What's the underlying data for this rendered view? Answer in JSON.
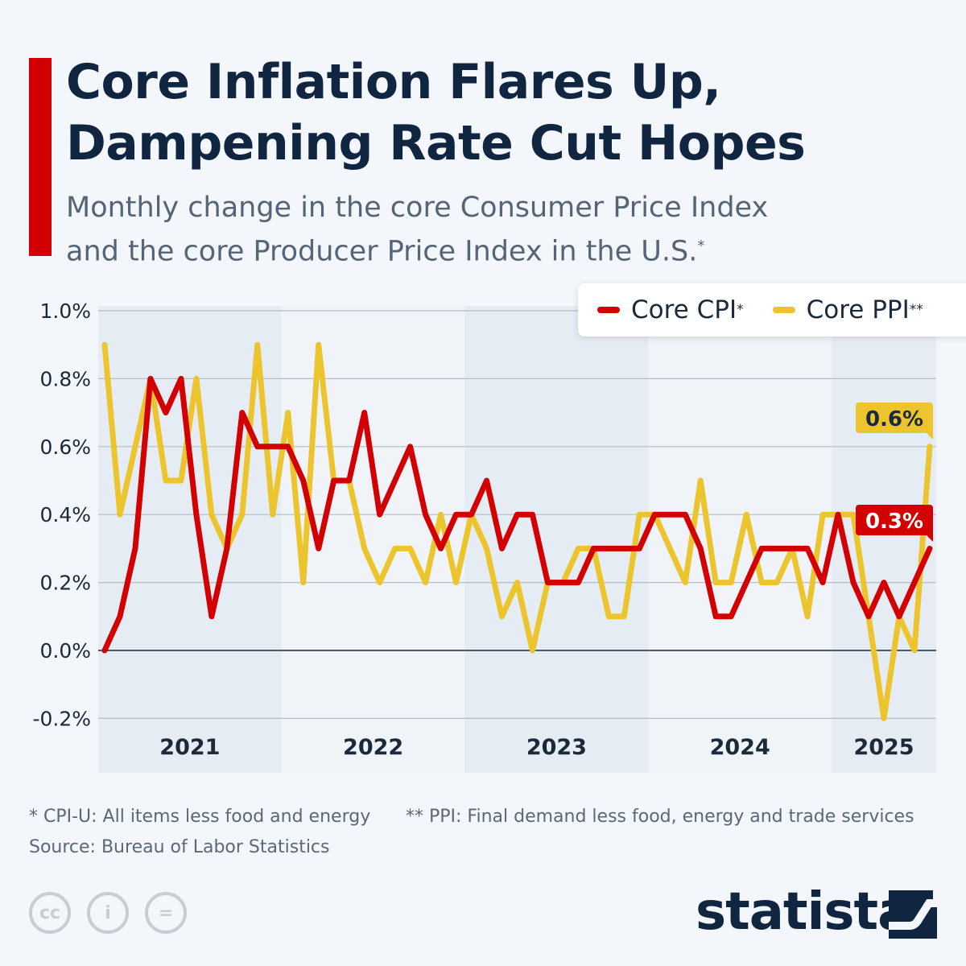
{
  "header": {
    "title_line1": "Core Inflation Flares Up,",
    "title_line2": "Dampening Rate Cut Hopes",
    "subtitle_line1": "Monthly change in the core Consumer Price Index",
    "subtitle_line2": "and the core Producer Price Index in the U.S.",
    "subtitle_mark": "*"
  },
  "legend": [
    {
      "label": "Core CPI",
      "mark": "*"
    },
    {
      "label": "Core PPI",
      "mark": "**"
    }
  ],
  "footer": {
    "note1": "* CPI-U: All items less food and energy",
    "note2": "** PPI: Final demand less food, energy and trade services",
    "source": "Source: Bureau of Labor Statistics",
    "brand": "statista",
    "license_icons": [
      "cc-icon",
      "attribution-icon",
      "no-derivatives-icon"
    ]
  },
  "colors": {
    "cpi": "#d20000",
    "ppi": "#ecc52e",
    "title": "#0f2540",
    "accent_bar": "#d20000"
  },
  "chart_data": {
    "type": "line",
    "x_start": "2021-01",
    "x_end": "2025-07",
    "x_frequency": "monthly",
    "year_labels": [
      "2021",
      "2022",
      "2023",
      "2024",
      "2025"
    ],
    "yticks": [
      "1.0%",
      "0.8%",
      "0.6%",
      "0.4%",
      "0.2%",
      "0.0%",
      "-0.2%"
    ],
    "ylim": [
      -0.2,
      1.0
    ],
    "grid": true,
    "legend_position": "top-right",
    "series": [
      {
        "name": "Core CPI",
        "values": [
          0.0,
          0.1,
          0.3,
          0.8,
          0.7,
          0.8,
          0.4,
          0.1,
          0.3,
          0.7,
          0.6,
          0.6,
          0.6,
          0.5,
          0.3,
          0.5,
          0.5,
          0.7,
          0.4,
          0.5,
          0.6,
          0.4,
          0.3,
          0.4,
          0.4,
          0.5,
          0.3,
          0.4,
          0.4,
          0.2,
          0.2,
          0.2,
          0.3,
          0.3,
          0.3,
          0.3,
          0.4,
          0.4,
          0.4,
          0.3,
          0.1,
          0.1,
          0.2,
          0.3,
          0.3,
          0.3,
          0.3,
          0.2,
          0.4,
          0.2,
          0.1,
          0.2,
          0.1,
          0.2,
          0.3
        ],
        "last_label": "0.3%"
      },
      {
        "name": "Core PPI",
        "values": [
          0.9,
          0.4,
          0.6,
          0.8,
          0.5,
          0.5,
          0.8,
          0.4,
          0.3,
          0.4,
          0.9,
          0.4,
          0.7,
          0.2,
          0.9,
          0.5,
          0.5,
          0.3,
          0.2,
          0.3,
          0.3,
          0.2,
          0.4,
          0.2,
          0.4,
          0.3,
          0.1,
          0.2,
          0.0,
          0.2,
          0.2,
          0.3,
          0.3,
          0.1,
          0.1,
          0.4,
          0.4,
          0.3,
          0.2,
          0.5,
          0.2,
          0.2,
          0.4,
          0.2,
          0.2,
          0.3,
          0.1,
          0.4,
          0.4,
          0.4,
          0.1,
          -0.2,
          0.1,
          0.0,
          0.6
        ],
        "last_label": "0.6%"
      }
    ]
  }
}
